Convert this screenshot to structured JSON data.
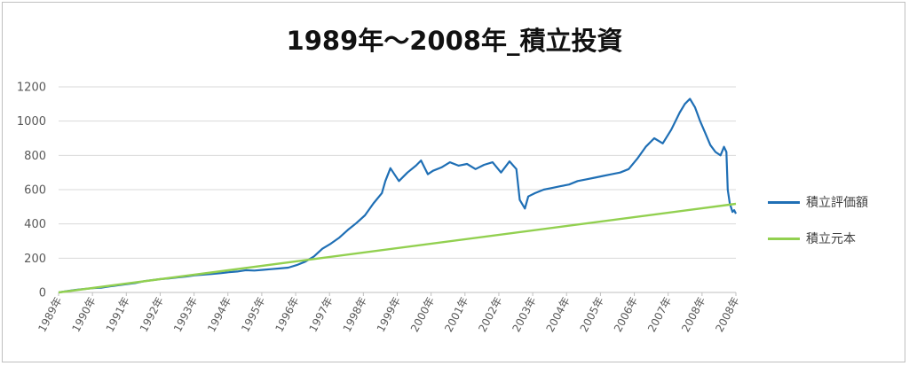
{
  "chart_data": {
    "type": "line",
    "title": "1989年～2008年_積立投資",
    "xlabel": "",
    "ylabel": "",
    "ylim": [
      0,
      1200
    ],
    "yticks": [
      0,
      200,
      400,
      600,
      800,
      1000,
      1200
    ],
    "xlim": [
      1989.0,
      2008.9
    ],
    "x_tick_labels": [
      "1989年",
      "1990年",
      "1991年",
      "1992年",
      "1993年",
      "1994年",
      "1995年",
      "1996年",
      "1997年",
      "1998年",
      "1999年",
      "2000年",
      "2001年",
      "2002年",
      "2003年",
      "2004年",
      "2005年",
      "2006年",
      "2007年",
      "2008年",
      "2008年"
    ],
    "grid": true,
    "legend_position": "right",
    "series": [
      {
        "name": "積立評価額",
        "color": "#1f6fb5",
        "x": [
          1989.0,
          1989.25,
          1989.5,
          1989.75,
          1990.0,
          1990.25,
          1990.5,
          1990.75,
          1991.0,
          1991.25,
          1991.5,
          1991.75,
          1992.0,
          1992.25,
          1992.5,
          1992.75,
          1993.0,
          1993.25,
          1993.5,
          1993.75,
          1994.0,
          1994.25,
          1994.5,
          1994.75,
          1995.0,
          1995.25,
          1995.5,
          1995.75,
          1996.0,
          1996.25,
          1996.5,
          1996.75,
          1997.0,
          1997.25,
          1997.5,
          1997.75,
          1998.0,
          1998.25,
          1998.5,
          1998.6,
          1998.75,
          1999.0,
          1999.25,
          1999.5,
          1999.65,
          1999.85,
          2000.0,
          2000.25,
          2000.5,
          2000.75,
          2001.0,
          2001.25,
          2001.5,
          2001.75,
          2002.0,
          2002.25,
          2002.45,
          2002.55,
          2002.7,
          2002.8,
          2003.0,
          2003.25,
          2003.5,
          2003.75,
          2004.0,
          2004.25,
          2004.5,
          2004.75,
          2005.0,
          2005.25,
          2005.5,
          2005.75,
          2006.0,
          2006.25,
          2006.5,
          2006.75,
          2007.0,
          2007.25,
          2007.4,
          2007.55,
          2007.7,
          2007.85,
          2008.0,
          2008.15,
          2008.3,
          2008.45,
          2008.55,
          2008.62,
          2008.66,
          2008.72,
          2008.8,
          2008.85,
          2008.9
        ],
        "values": [
          0,
          8,
          15,
          20,
          25,
          28,
          35,
          42,
          48,
          55,
          65,
          72,
          78,
          82,
          88,
          93,
          100,
          104,
          108,
          112,
          118,
          122,
          130,
          128,
          132,
          136,
          140,
          145,
          160,
          180,
          210,
          255,
          285,
          320,
          365,
          405,
          450,
          520,
          580,
          650,
          725,
          650,
          700,
          740,
          770,
          690,
          710,
          730,
          760,
          740,
          750,
          720,
          745,
          760,
          700,
          765,
          720,
          540,
          490,
          560,
          580,
          600,
          610,
          620,
          630,
          650,
          660,
          670,
          680,
          690,
          700,
          720,
          780,
          850,
          900,
          870,
          950,
          1050,
          1100,
          1130,
          1080,
          1000,
          930,
          860,
          820,
          800,
          850,
          820,
          600,
          520,
          470,
          480,
          460
        ]
      },
      {
        "name": "積立元本",
        "color": "#92d050",
        "x": [
          1989.0,
          2008.9
        ],
        "values": [
          0,
          517
        ]
      }
    ]
  }
}
